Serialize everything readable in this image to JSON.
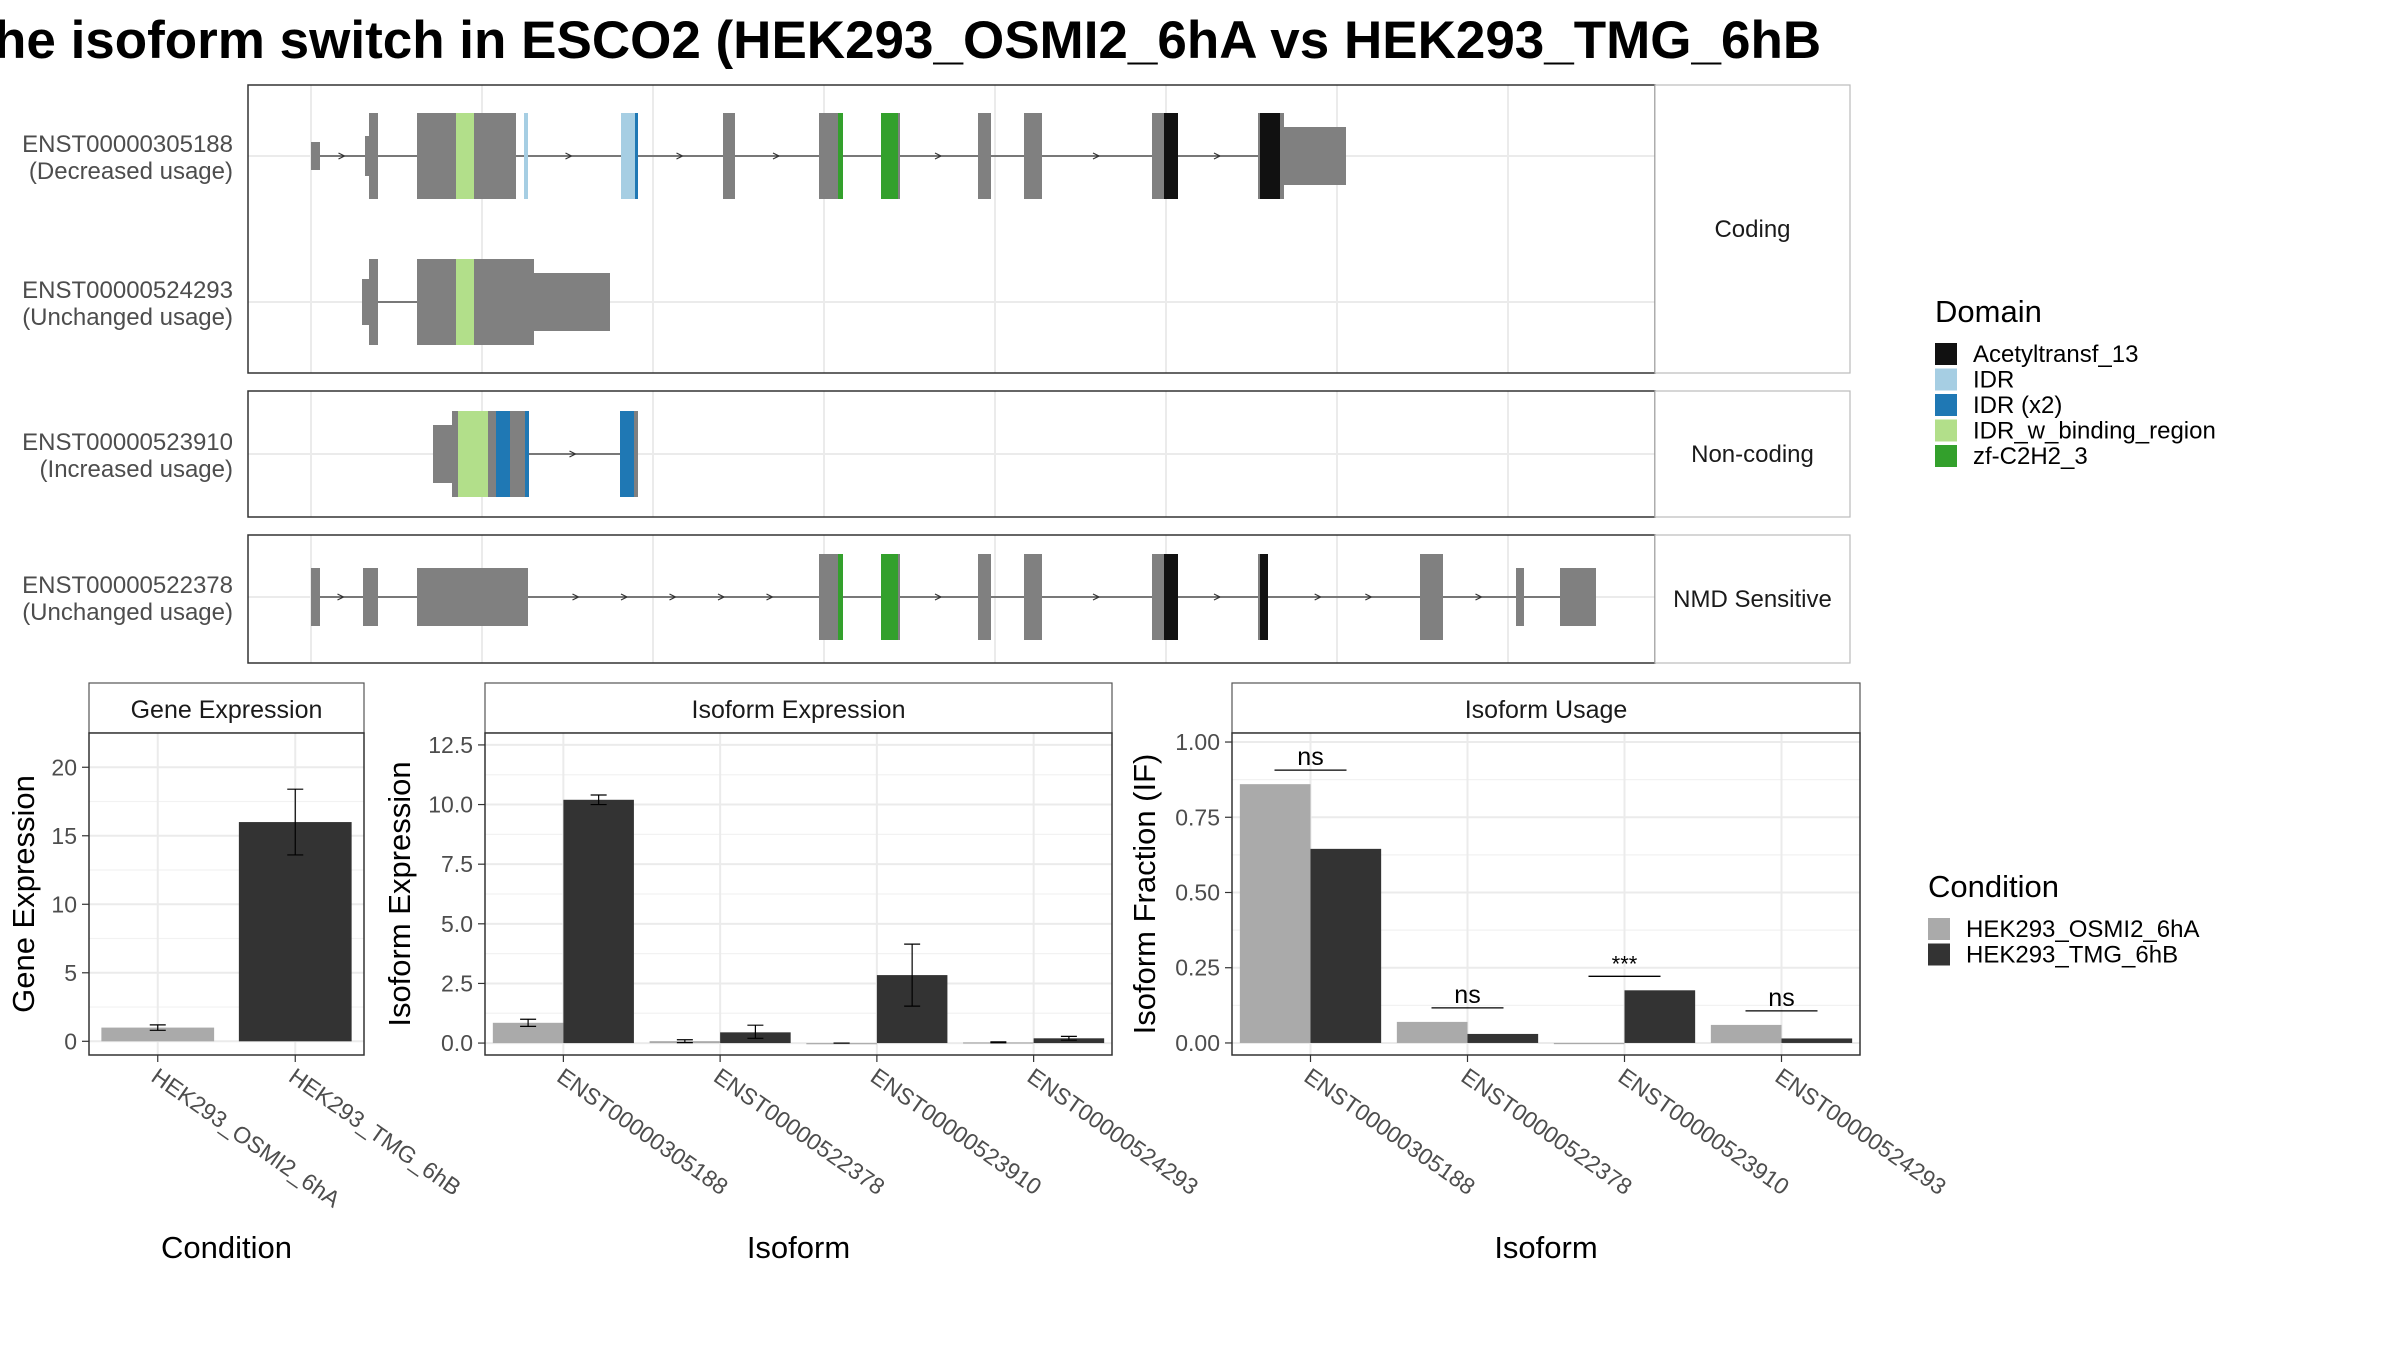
{
  "title": "he isoform switch in ESCO2 (HEK293_OSMI2_6hA vs HEK293_TMG_6hB",
  "structure": {
    "panels": [
      {
        "label": "Coding",
        "rows": [
          {
            "isoform": "ENST00000305188",
            "usage": "(Decreased usage)"
          },
          {
            "isoform": "ENST00000524293",
            "usage": "(Unchanged usage)"
          }
        ]
      },
      {
        "label": "Non-coding",
        "rows": [
          {
            "isoform": "ENST00000523910",
            "usage": "(Increased usage)"
          }
        ]
      },
      {
        "label": "NMD Sensitive",
        "rows": [
          {
            "isoform": "ENST00000522378",
            "usage": "(Unchanged usage)"
          }
        ]
      }
    ]
  },
  "domain_legend": {
    "title": "Domain",
    "items": [
      {
        "label": "Acetyltransf_13",
        "color": "#111111"
      },
      {
        "label": "IDR",
        "color": "#a6cee3"
      },
      {
        "label": "IDR (x2)",
        "color": "#1f78b4"
      },
      {
        "label": "IDR_w_binding_region",
        "color": "#b2df8a"
      },
      {
        "label": "zf-C2H2_3",
        "color": "#33a02c"
      }
    ]
  },
  "condition_legend": {
    "title": "Condition",
    "items": [
      {
        "label": "HEK293_OSMI2_6hA",
        "color": "#aaaaaa"
      },
      {
        "label": "HEK293_TMG_6hB",
        "color": "#333333"
      }
    ]
  },
  "chart_data": [
    {
      "type": "bar",
      "title": "Gene Expression",
      "xlabel": "Condition",
      "ylabel": "Gene Expression",
      "categories": [
        "HEK293_OSMI2_6hA",
        "HEK293_TMG_6hB"
      ],
      "values": [
        1.0,
        16.0
      ],
      "errors": [
        [
          0.8,
          1.2
        ],
        [
          13.6,
          18.4
        ]
      ],
      "ylim": [
        -1,
        22.5
      ],
      "yticks": [
        0,
        5,
        10,
        15,
        20
      ],
      "ytick_labels": [
        "0",
        "5",
        "10",
        "15",
        "20"
      ]
    },
    {
      "type": "bar",
      "title": "Isoform Expression",
      "xlabel": "Isoform",
      "ylabel": "Isoform Expression",
      "categories": [
        "ENST00000305188",
        "ENST00000522378",
        "ENST00000523910",
        "ENST00000524293"
      ],
      "series": [
        {
          "name": "HEK293_OSMI2_6hA",
          "values": [
            0.85,
            0.08,
            0.0,
            0.03
          ],
          "errors": [
            [
              0.7,
              1.0
            ],
            [
              0.02,
              0.14
            ],
            [
              0.0,
              0.0
            ],
            [
              0.01,
              0.05
            ]
          ]
        },
        {
          "name": "HEK293_TMG_6hB",
          "values": [
            10.2,
            0.45,
            2.85,
            0.2
          ],
          "errors": [
            [
              10.0,
              10.4
            ],
            [
              0.2,
              0.75
            ],
            [
              1.55,
              4.15
            ],
            [
              0.12,
              0.28
            ]
          ]
        }
      ],
      "ylim": [
        -0.5,
        13.0
      ],
      "yticks": [
        0,
        2.5,
        5,
        7.5,
        10,
        12.5
      ],
      "ytick_labels": [
        "0.0",
        "2.5",
        "5.0",
        "7.5",
        "10.0",
        "12.5"
      ]
    },
    {
      "type": "bar",
      "title": "Isoform Usage",
      "xlabel": "Isoform",
      "ylabel": "Isoform Fraction (IF)",
      "categories": [
        "ENST00000305188",
        "ENST00000522378",
        "ENST00000523910",
        "ENST00000524293"
      ],
      "series": [
        {
          "name": "HEK293_OSMI2_6hA",
          "values": [
            0.86,
            0.07,
            0.0,
            0.06
          ]
        },
        {
          "name": "HEK293_TMG_6hB",
          "values": [
            0.645,
            0.03,
            0.175,
            0.015
          ]
        }
      ],
      "significance": [
        "ns",
        "ns",
        "***",
        "ns"
      ],
      "ylim": [
        -0.04,
        1.03
      ],
      "yticks": [
        0,
        0.25,
        0.5,
        0.75,
        1.0
      ],
      "ytick_labels": [
        "0.00",
        "0.25",
        "0.50",
        "0.75",
        "1.00"
      ]
    }
  ]
}
